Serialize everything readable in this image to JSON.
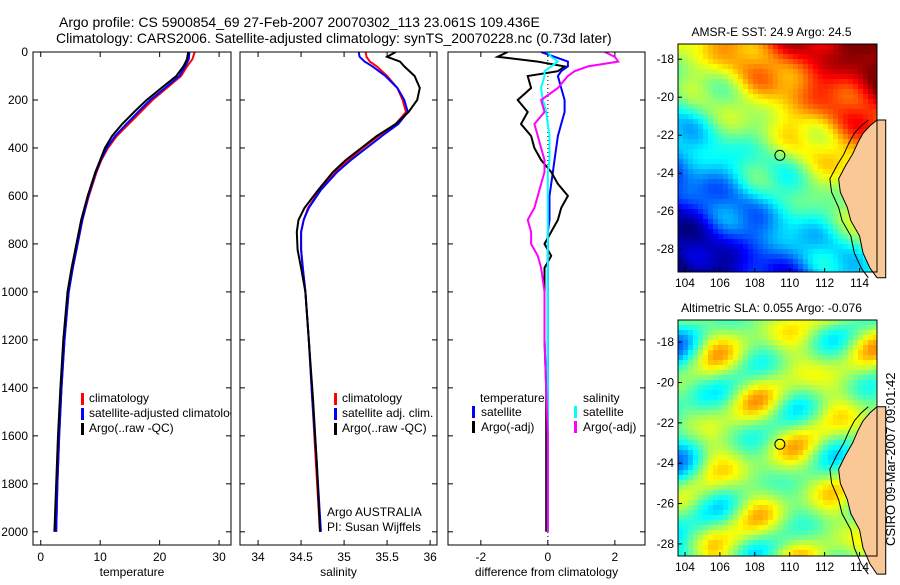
{
  "title_line1": "Argo profile: CS 5900854_69 27-Feb-2007 20070302_113 23.061S 109.436E",
  "title_line2": "Climatology: CARS2006. Satellite-adjusted climatology: synTS_20070228.nc (0.73d later)",
  "footer_stamp": "CSIRO 09-Mar-2007 09:01:42",
  "colors": {
    "climatology": "#ff0000",
    "satellite": "#0000ff",
    "argo": "#000000",
    "sal_satellite": "#00ffff",
    "sal_argo": "#ff00ff",
    "land": "#f9c896"
  },
  "chart_data": [
    {
      "type": "line",
      "xlabel": "temperature",
      "ylabel": "",
      "xlim": [
        -1.3,
        32
      ],
      "ylim": [
        0,
        2055
      ],
      "xticks": [
        0,
        10,
        20,
        30
      ],
      "xtick_labels": [
        "0",
        "10",
        "20",
        "30"
      ],
      "yticks": [
        0,
        200,
        400,
        600,
        800,
        1000,
        1200,
        1400,
        1600,
        1800,
        2000
      ],
      "ytick_labels": [
        "0",
        "200",
        "400",
        "600",
        "800",
        "1000",
        "1200",
        "1400",
        "1600",
        "1800",
        "2000"
      ],
      "legend": [
        "climatology",
        "satellite-adjusted climatology",
        "Argo(..raw -QC)"
      ],
      "depth": [
        0,
        30,
        60,
        100,
        150,
        200,
        250,
        300,
        350,
        400,
        450,
        500,
        600,
        700,
        800,
        900,
        1000,
        1200,
        1400,
        1600,
        1800,
        2000
      ],
      "series": [
        {
          "name": "climatology",
          "color": "#ff0000",
          "values": [
            25.9,
            25.5,
            24.6,
            23.6,
            21.2,
            18.8,
            16.8,
            14.8,
            12.8,
            11.3,
            10.2,
            9.4,
            8.1,
            7.0,
            6.2,
            5.4,
            4.7,
            4.0,
            3.5,
            3.1,
            2.8,
            2.6
          ]
        },
        {
          "name": "satellite-adjusted climatology",
          "color": "#0000ff",
          "values": [
            25.0,
            24.9,
            24.3,
            23.3,
            20.9,
            18.4,
            16.4,
            14.4,
            12.5,
            11.1,
            10.1,
            9.3,
            8.0,
            7.0,
            6.2,
            5.4,
            4.7,
            4.0,
            3.5,
            3.1,
            2.8,
            2.6
          ]
        },
        {
          "name": "Argo(..raw -QC)",
          "color": "#000000",
          "values": [
            24.8,
            24.6,
            24.0,
            22.8,
            20.3,
            17.8,
            15.7,
            13.7,
            12.0,
            10.8,
            10.0,
            9.2,
            7.9,
            6.8,
            6.0,
            5.2,
            4.5,
            3.8,
            3.3,
            2.9,
            2.6,
            2.3
          ]
        }
      ]
    },
    {
      "type": "line",
      "xlabel": "salinity",
      "xlim": [
        33.79,
        36.08
      ],
      "ylim": [
        0,
        2055
      ],
      "xticks": [
        34,
        34.5,
        35,
        35.5,
        36
      ],
      "xtick_labels": [
        "34",
        "34.5",
        "35",
        "35.5",
        "36"
      ],
      "legend": [
        "climatology",
        "satellite adj. clim.",
        "Argo(..raw -QC)"
      ],
      "annotation": [
        "Argo AUSTRALIA",
        "PI: Susan Wijffels"
      ],
      "depth": [
        0,
        20,
        40,
        60,
        100,
        150,
        200,
        250,
        300,
        350,
        400,
        450,
        500,
        575,
        650,
        700,
        750,
        825,
        900,
        1000,
        1200,
        1450,
        1700,
        2000
      ],
      "series": [
        {
          "name": "climatology",
          "color": "#ff0000",
          "values": [
            35.25,
            35.26,
            35.3,
            35.38,
            35.5,
            35.62,
            35.68,
            35.72,
            35.6,
            35.4,
            35.22,
            35.05,
            34.9,
            34.72,
            34.58,
            34.53,
            34.5,
            34.5,
            34.52,
            34.55,
            34.59,
            34.63,
            34.67,
            34.72
          ]
        },
        {
          "name": "satellite adj. clim.",
          "color": "#0000ff",
          "values": [
            35.17,
            35.18,
            35.24,
            35.33,
            35.48,
            35.62,
            35.7,
            35.74,
            35.63,
            35.44,
            35.26,
            35.08,
            34.92,
            34.73,
            34.59,
            34.53,
            34.5,
            34.5,
            34.52,
            34.55,
            34.59,
            34.63,
            34.68,
            34.73
          ]
        },
        {
          "name": "Argo(..raw -QC)",
          "color": "#000000",
          "values": [
            35.6,
            35.5,
            35.65,
            35.7,
            35.82,
            35.88,
            35.85,
            35.75,
            35.6,
            35.38,
            35.2,
            35.02,
            34.87,
            34.7,
            34.54,
            34.47,
            34.45,
            34.46,
            34.5,
            34.55,
            34.59,
            34.64,
            34.68,
            34.72
          ]
        }
      ]
    },
    {
      "type": "line",
      "xlabel": "difference from climatology",
      "xlim": [
        -2.98,
        2.9
      ],
      "ylim": [
        0,
        2055
      ],
      "xticks": [
        -2,
        0,
        2
      ],
      "xtick_labels": [
        "-2",
        "0",
        "2"
      ],
      "legend_headers": [
        "temperature",
        "salinity"
      ],
      "legend": [
        "satellite",
        "Argo(-adj)",
        "satellite",
        "Argo(-adj)"
      ],
      "depth": [
        0,
        20,
        40,
        60,
        80,
        100,
        150,
        200,
        250,
        300,
        350,
        400,
        450,
        500,
        550,
        600,
        650,
        700,
        750,
        800,
        850,
        900,
        1000,
        1100,
        1200,
        1400,
        1600,
        1800,
        2000
      ],
      "series": [
        {
          "name": "temperature satellite",
          "color": "#0000ff",
          "values": [
            -0.2,
            0.2,
            0.6,
            0.6,
            0.4,
            0.3,
            0.4,
            0.5,
            0.5,
            0.4,
            0.3,
            0.25,
            0.2,
            0.15,
            0.1,
            0.05,
            0.05,
            0.05,
            0.0,
            0.0,
            0.0,
            0.0,
            0.0,
            0.0,
            0.0,
            0.0,
            0.0,
            0.0,
            0.0
          ]
        },
        {
          "name": "temperature Argo(-adj)",
          "color": "#000000",
          "values": [
            -1.2,
            -1.5,
            -0.3,
            0.5,
            0.3,
            -0.6,
            -0.5,
            -0.9,
            -0.6,
            -0.8,
            -0.5,
            -0.4,
            -0.2,
            0.1,
            0.3,
            0.6,
            0.4,
            0.3,
            0.1,
            -0.1,
            0.1,
            -0.1,
            -0.1,
            -0.1,
            -0.1,
            -0.05,
            -0.05,
            -0.05,
            -0.05
          ]
        },
        {
          "name": "salinity satellite",
          "color": "#00ffff",
          "values": [
            0.0,
            0.1,
            0.3,
            0.1,
            -0.1,
            -0.1,
            -0.2,
            -0.15,
            -0.05,
            0.0,
            0.05,
            0.05,
            0.05,
            0.0,
            0.0,
            0.0,
            0.0,
            0.0,
            0.0,
            0.0,
            0.0,
            0.0,
            0.0,
            0.0,
            0.0,
            0.0,
            0.0,
            0.0,
            0.0
          ]
        },
        {
          "name": "salinity Argo(-adj)",
          "color": "#ff00ff",
          "values": [
            1.7,
            2.0,
            2.1,
            1.2,
            0.8,
            0.6,
            0.3,
            -0.2,
            -0.1,
            -0.4,
            -0.3,
            -0.2,
            -0.1,
            -0.1,
            -0.2,
            -0.3,
            -0.4,
            -0.6,
            -0.5,
            -0.5,
            -0.3,
            -0.2,
            -0.1,
            -0.1,
            -0.1,
            -0.05,
            0.0,
            0.0,
            0.0
          ]
        }
      ]
    },
    {
      "type": "heatmap",
      "title": "AMSR-E SST: 24.9 Argo: 24.5",
      "xlim": [
        103.6,
        115
      ],
      "ylim": [
        -29.2,
        -17.2
      ],
      "xticks": [
        104,
        106,
        108,
        110,
        112,
        114
      ],
      "xtick_labels": [
        "104",
        "106",
        "108",
        "110",
        "112",
        "114"
      ],
      "yticks": [
        -18,
        -20,
        -22,
        -24,
        -26,
        -28
      ],
      "ytick_labels": [
        "-18",
        "-20",
        "-22",
        "-24",
        "-26",
        "-28"
      ],
      "value_range": [
        20,
        30
      ],
      "argo_position": {
        "lon": 109.436,
        "lat": -23.061
      }
    },
    {
      "type": "heatmap",
      "title": "Altimetric SLA: 0.055 Argo: -0.076",
      "xlim": [
        103.6,
        115
      ],
      "ylim": [
        -28.6,
        -16.9
      ],
      "xticks": [
        104,
        106,
        108,
        110,
        112,
        114
      ],
      "xtick_labels": [
        "104",
        "106",
        "108",
        "110",
        "112",
        "114"
      ],
      "yticks": [
        -18,
        -20,
        -22,
        -24,
        -26,
        -28
      ],
      "ytick_labels": [
        "-18",
        "-20",
        "-22",
        "-24",
        "-26",
        "-28"
      ],
      "value_range": [
        -0.3,
        0.3
      ],
      "argo_position": {
        "lon": 109.436,
        "lat": -23.061
      }
    }
  ]
}
